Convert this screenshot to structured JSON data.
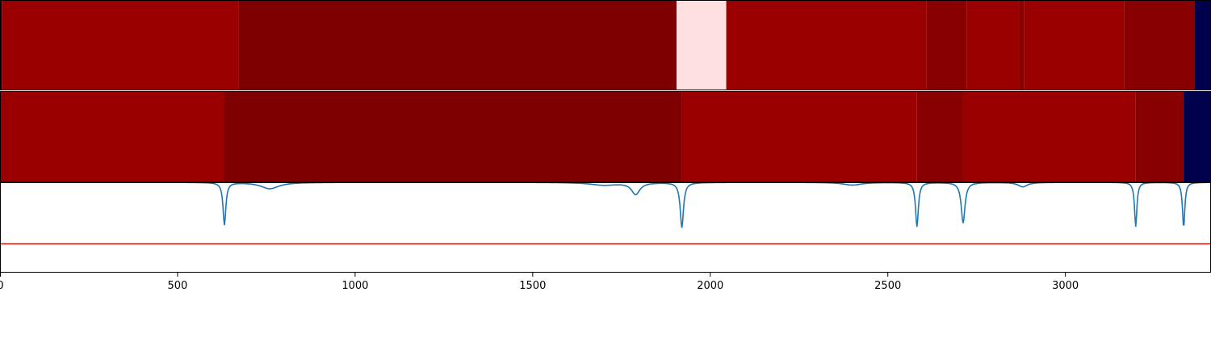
{
  "chart_data": [
    {
      "type": "heatmap",
      "panel": "top-segmentation",
      "xlim": [
        0,
        3410
      ],
      "segments": [
        {
          "start": 0,
          "end": 5,
          "color": "#00004c"
        },
        {
          "start": 5,
          "end": 672,
          "color": "#9a0000"
        },
        {
          "start": 672,
          "end": 1905,
          "color": "#7f0000"
        },
        {
          "start": 1905,
          "end": 2045,
          "color": "#ffe0e0"
        },
        {
          "start": 2045,
          "end": 2608,
          "color": "#9a0000"
        },
        {
          "start": 2608,
          "end": 2723,
          "color": "#880000"
        },
        {
          "start": 2723,
          "end": 2870,
          "color": "#9a0000"
        },
        {
          "start": 2870,
          "end": 2883,
          "color": "#880000"
        },
        {
          "start": 2883,
          "end": 3165,
          "color": "#9a0000"
        },
        {
          "start": 3165,
          "end": 3363,
          "color": "#880000"
        },
        {
          "start": 3363,
          "end": 3410,
          "color": "#00004c"
        }
      ]
    },
    {
      "type": "heatmap",
      "panel": "middle-segmentation",
      "xlim": [
        0,
        3410
      ],
      "segments": [
        {
          "start": 0,
          "end": 632,
          "color": "#9a0000"
        },
        {
          "start": 632,
          "end": 1920,
          "color": "#7f0000"
        },
        {
          "start": 1920,
          "end": 2582,
          "color": "#9a0000"
        },
        {
          "start": 2582,
          "end": 2712,
          "color": "#880000"
        },
        {
          "start": 2712,
          "end": 3198,
          "color": "#9a0000"
        },
        {
          "start": 3198,
          "end": 3333,
          "color": "#880000"
        },
        {
          "start": 3333,
          "end": 3410,
          "color": "#00004c"
        }
      ]
    },
    {
      "type": "line",
      "panel": "bottom-signal",
      "xlim": [
        0,
        3410
      ],
      "ylim": [
        -1.0,
        0.0
      ],
      "threshold": -0.68,
      "threshold_color": "#e8211d",
      "line_color": "#1f77b4",
      "xticks": [
        0,
        500,
        1000,
        1500,
        2000,
        2500,
        3000
      ],
      "baseline": 0.0,
      "dips": [
        {
          "x": 632,
          "depth": -0.47,
          "width": 6
        },
        {
          "x": 760,
          "depth": -0.07,
          "width": 40
        },
        {
          "x": 1700,
          "depth": -0.03,
          "width": 60
        },
        {
          "x": 1790,
          "depth": -0.13,
          "width": 18
        },
        {
          "x": 1920,
          "depth": -0.5,
          "width": 7
        },
        {
          "x": 2400,
          "depth": -0.03,
          "width": 40
        },
        {
          "x": 2582,
          "depth": -0.49,
          "width": 6
        },
        {
          "x": 2712,
          "depth": -0.45,
          "width": 8
        },
        {
          "x": 2880,
          "depth": -0.05,
          "width": 20
        },
        {
          "x": 3198,
          "depth": -0.49,
          "width": 5
        },
        {
          "x": 3333,
          "depth": -0.5,
          "width": 5
        }
      ]
    }
  ]
}
